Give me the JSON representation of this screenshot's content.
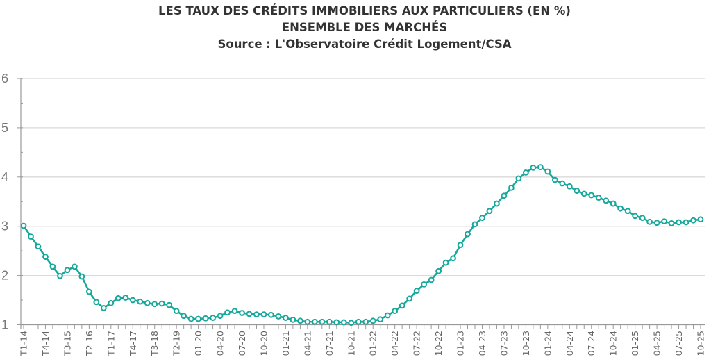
{
  "chart_data": {
    "type": "line",
    "title": [
      "LES TAUX DES CRÉDITS IMMOBILIERS AUX PARTICULIERS (EN %)",
      "ENSEMBLE DES MARCHÉS",
      "Source : L'Observatoire Crédit Logement/CSA"
    ],
    "ylim": [
      1,
      6
    ],
    "yticks": [
      "1",
      "2",
      "3",
      "4",
      "5",
      "6"
    ],
    "grid": true,
    "line_color": "#17a89c",
    "x_tick_labels": [
      "T1-14",
      "T4-14",
      "T3-15",
      "T2-16",
      "T1-17",
      "T4-17",
      "T3-18",
      "T2-19",
      "01-20",
      "04-20",
      "07-20",
      "10-20",
      "01-21",
      "04-21",
      "07-21",
      "10-21",
      "01-22",
      "04-22",
      "07-22",
      "10-22",
      "01-23",
      "04-23",
      "07-23",
      "10-23",
      "01-24",
      "04-24",
      "07-24",
      "10-24",
      "01-25",
      "04-25",
      "07-25",
      "10-25"
    ],
    "values": [
      3.01,
      2.79,
      2.59,
      2.38,
      2.18,
      1.99,
      2.11,
      2.18,
      1.98,
      1.67,
      1.46,
      1.34,
      1.44,
      1.54,
      1.55,
      1.5,
      1.47,
      1.44,
      1.42,
      1.43,
      1.4,
      1.28,
      1.18,
      1.12,
      1.12,
      1.13,
      1.14,
      1.18,
      1.25,
      1.28,
      1.24,
      1.22,
      1.21,
      1.21,
      1.2,
      1.17,
      1.14,
      1.1,
      1.08,
      1.06,
      1.06,
      1.06,
      1.06,
      1.05,
      1.05,
      1.04,
      1.06,
      1.06,
      1.08,
      1.11,
      1.19,
      1.28,
      1.39,
      1.53,
      1.69,
      1.82,
      1.91,
      2.09,
      2.26,
      2.35,
      2.62,
      2.84,
      3.04,
      3.17,
      3.31,
      3.46,
      3.62,
      3.78,
      3.97,
      4.09,
      4.19,
      4.2,
      4.11,
      3.94,
      3.87,
      3.81,
      3.72,
      3.66,
      3.63,
      3.58,
      3.52,
      3.46,
      3.36,
      3.31,
      3.21,
      3.17,
      3.09,
      3.07,
      3.1,
      3.06,
      3.08,
      3.08,
      3.12,
      3.14
    ]
  }
}
